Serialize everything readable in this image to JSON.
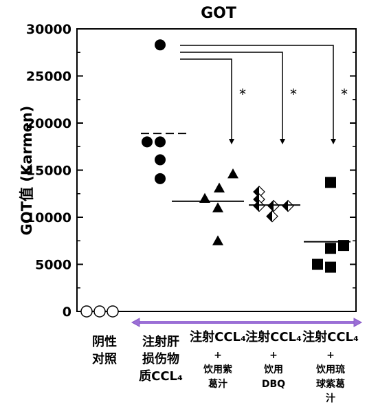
{
  "chart_data": {
    "type": "scatter",
    "title": "GOT",
    "ylabel": "GOT值 (Karmen)",
    "ylim": [
      0,
      30000
    ],
    "yticks": [
      0,
      5000,
      10000,
      15000,
      20000,
      25000,
      30000
    ],
    "significance_mark": "*",
    "groups": [
      {
        "label_lines": [
          "阴性",
          "对照"
        ],
        "marker": "circle-open",
        "values": [
          0,
          0,
          0
        ],
        "mean": null
      },
      {
        "label_lines": [
          "注射肝",
          "损伤物",
          "质CCL₄"
        ],
        "marker": "circle-filled",
        "values": [
          28300,
          18000,
          18000,
          16100,
          14100
        ],
        "mean": 18900,
        "mean_style": "dashed"
      },
      {
        "label_lines": [
          "注射CCL₄",
          "+",
          "饮用紫",
          "葛汁"
        ],
        "marker": "triangle-filled",
        "values": [
          14600,
          13100,
          12000,
          11000,
          7500
        ],
        "mean": 11700,
        "mean_style": "solid",
        "significant": true
      },
      {
        "label_lines": [
          "注射CCL₄",
          "+",
          "饮用",
          "DBQ"
        ],
        "marker": "diamond-half",
        "values": [
          12700,
          11900,
          11200,
          11200,
          11200,
          10100
        ],
        "mean": 11300,
        "mean_style": "solid",
        "significant": true
      },
      {
        "label_lines": [
          "注射CCL₄",
          "+",
          "饮用琉",
          "球紫葛",
          "汁"
        ],
        "marker": "square-filled",
        "values": [
          13700,
          7000,
          6700,
          5000,
          4700
        ],
        "mean": 7400,
        "mean_style": "solid",
        "significant": true
      }
    ],
    "colors": {
      "markers": "#000000",
      "group_arrow": "#9b6fd6",
      "group_arrow_outline": "#8a5cc8"
    }
  }
}
